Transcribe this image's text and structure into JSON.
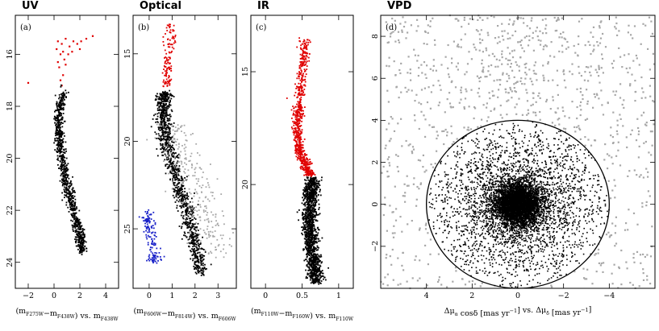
{
  "chart_data": [
    {
      "type": "scatter",
      "id": "uv",
      "title": "UV",
      "panel_label": "(a)",
      "xlabel": "(m_F275W−m_F438W) vs. m_F438W",
      "xlabel_parts": [
        "(m",
        "F275W",
        "−m",
        "F438W",
        ") vs. m",
        "F438W"
      ],
      "xlim": [
        -3,
        5
      ],
      "ylim": [
        25,
        14.5
      ],
      "y_inverted": true,
      "xticks": [
        -2,
        0,
        2,
        4
      ],
      "yticks": [
        16,
        18,
        20,
        22,
        24
      ],
      "series": [
        {
          "name": "",
          "color": "#e00000",
          "points": [
            [
              0.3,
              15.5
            ],
            [
              0.6,
              15.6
            ],
            [
              0.9,
              15.4
            ],
            [
              1.2,
              15.7
            ],
            [
              1.5,
              15.5
            ],
            [
              1.8,
              15.6
            ],
            [
              2.1,
              15.5
            ],
            [
              2.5,
              15.4
            ],
            [
              3.0,
              15.3
            ],
            [
              0.5,
              16.0
            ],
            [
              0.8,
              16.2
            ],
            [
              0.4,
              16.5
            ],
            [
              0.7,
              16.8
            ],
            [
              0.5,
              17.0
            ],
            [
              0.9,
              16.4
            ],
            [
              0.6,
              17.2
            ],
            [
              0.3,
              16.3
            ],
            [
              1.1,
              16.0
            ],
            [
              0.2,
              15.8
            ],
            [
              0.7,
              15.9
            ],
            [
              1.4,
              15.9
            ],
            [
              2.0,
              15.8
            ],
            [
              -2.0,
              17.1
            ]
          ]
        },
        {
          "name": "",
          "color": "#000000",
          "ridge": [
            [
              0.75,
              17.5
            ],
            [
              0.4,
              18.2
            ],
            [
              0.35,
              18.8
            ],
            [
              0.45,
              19.5
            ],
            [
              0.7,
              20.3
            ],
            [
              1.0,
              21.0
            ],
            [
              1.35,
              21.7
            ],
            [
              1.7,
              22.4
            ],
            [
              2.0,
              23.0
            ],
            [
              2.2,
              23.6
            ]
          ],
          "ridge_spread": 0.18,
          "ridge_n": 900
        }
      ]
    },
    {
      "type": "scatter",
      "id": "optical",
      "title": "Optical",
      "panel_label": "(b)",
      "xlabel": "(m_F606W−m_F814W) vs. m_F606W",
      "xlabel_parts": [
        "(m",
        "F606W",
        "−m",
        "F814W",
        ") vs. m",
        "F606W"
      ],
      "xlim": [
        -0.7,
        3.8
      ],
      "ylim": [
        28.4,
        12.8
      ],
      "y_inverted": true,
      "xticks": [
        0,
        1,
        2,
        3
      ],
      "yticks": [
        15,
        20,
        25
      ],
      "series": [
        {
          "name": "",
          "color": "#e00000",
          "ridge": [
            [
              0.95,
              13.3
            ],
            [
              0.9,
              14.2
            ],
            [
              0.85,
              15.2
            ],
            [
              0.8,
              16.0
            ],
            [
              0.75,
              16.8
            ]
          ],
          "ridge_spread": 0.12,
          "ridge_n": 120
        },
        {
          "name": "",
          "color": "#000000",
          "ridge": [
            [
              0.72,
              17.2
            ],
            [
              0.6,
              17.8
            ],
            [
              0.62,
              18.8
            ],
            [
              0.75,
              20.0
            ],
            [
              1.0,
              21.3
            ],
            [
              1.3,
              22.5
            ],
            [
              1.6,
              23.8
            ],
            [
              1.85,
              25.0
            ],
            [
              2.05,
              26.3
            ],
            [
              2.25,
              27.6
            ]
          ],
          "ridge_spread": 0.16,
          "ridge_n": 1100
        },
        {
          "name": "",
          "color": "#a8a8a8",
          "ridge": [
            [
              1.0,
              19.0
            ],
            [
              1.4,
              20.5
            ],
            [
              1.8,
              22.0
            ],
            [
              2.2,
              23.5
            ],
            [
              2.6,
              25.0
            ],
            [
              2.9,
              26.5
            ]
          ],
          "ridge_spread": 0.45,
          "ridge_n": 260
        },
        {
          "name": "",
          "color": "#1a22c8",
          "ridge": [
            [
              -0.1,
              24.0
            ],
            [
              0.0,
              25.0
            ],
            [
              0.15,
              26.0
            ],
            [
              0.3,
              26.9
            ]
          ],
          "ridge_spread": 0.14,
          "ridge_n": 140
        }
      ]
    },
    {
      "type": "scatter",
      "id": "ir",
      "title": "IR",
      "panel_label": "(c)",
      "xlabel": "(m_F110W−m_F160W) vs. m_F110W",
      "xlabel_parts": [
        "(m",
        "F110W",
        "−m",
        "F160W",
        ") vs. m",
        "F110W"
      ],
      "xlim": [
        -0.2,
        1.2
      ],
      "ylim": [
        24.6,
        12.5
      ],
      "y_inverted": true,
      "xticks": [
        0,
        0.5,
        1
      ],
      "yticks": [
        15,
        20
      ],
      "series": [
        {
          "name": "",
          "color": "#e00000",
          "ridge": [
            [
              0.55,
              13.5
            ],
            [
              0.5,
              15.0
            ],
            [
              0.45,
              16.5
            ],
            [
              0.43,
              17.5
            ],
            [
              0.47,
              18.5
            ],
            [
              0.55,
              19.2
            ],
            [
              0.62,
              19.6
            ]
          ],
          "ridge_spread": 0.035,
          "ridge_n": 700
        },
        {
          "name": "",
          "color": "#000000",
          "ridge": [
            [
              0.65,
              19.7
            ],
            [
              0.62,
              20.5
            ],
            [
              0.6,
              21.5
            ],
            [
              0.62,
              22.5
            ],
            [
              0.66,
              23.5
            ],
            [
              0.7,
              24.4
            ]
          ],
          "ridge_spread": 0.05,
          "ridge_n": 1300
        }
      ]
    },
    {
      "type": "scatter",
      "id": "vpd",
      "title": "VPD",
      "panel_label": "(d)",
      "xlabel": "Δμ_α cosδ [mas yr⁻¹] vs. Δμ_δ [mas yr⁻¹]",
      "xlabel_parts": [
        "Δμ",
        "α",
        " cosδ [mas yr",
        "−1",
        "] vs. Δμ",
        "δ",
        " [mas yr",
        "−1",
        "]"
      ],
      "xlim": [
        6,
        -6
      ],
      "ylim": [
        -4,
        9
      ],
      "x_inverted": true,
      "xticks": [
        4,
        2,
        0,
        -2,
        -4
      ],
      "yticks": [
        -2,
        0,
        2,
        4,
        6,
        8
      ],
      "selection_circle": {
        "center": [
          0,
          0
        ],
        "radius": 4
      },
      "series": [
        {
          "name": "",
          "color": "#a8a8a8",
          "field_outside_circle": true,
          "n": 900
        },
        {
          "name": "",
          "color": "#000000",
          "cluster_center": [
            0,
            0
          ],
          "sigma": 0.9,
          "n": 7000
        }
      ]
    }
  ]
}
